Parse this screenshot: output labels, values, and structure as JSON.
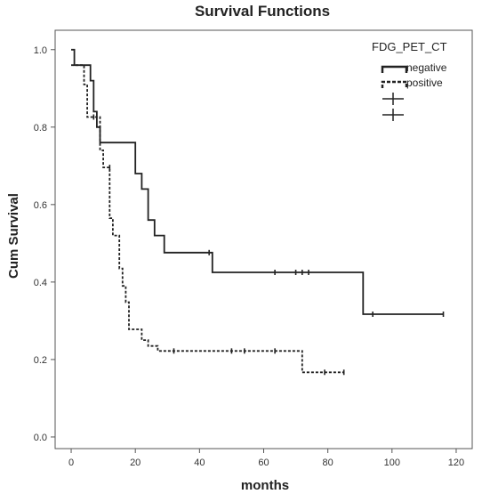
{
  "chart_data": {
    "type": "line",
    "title": "Survival Functions",
    "xlabel": "months",
    "ylabel": "Cum Survival",
    "xlim": [
      -5,
      125
    ],
    "ylim": [
      -0.03,
      1.05
    ],
    "x_ticks": [
      0,
      20,
      40,
      60,
      80,
      100,
      120
    ],
    "y_ticks": [
      0.0,
      0.2,
      0.4,
      0.6,
      0.8,
      1.0
    ],
    "x_tick_labels": [
      "0",
      "20",
      "40",
      "60",
      "80",
      "100",
      "120"
    ],
    "y_tick_labels": [
      "0.0",
      "0.2",
      "0.4",
      "0.6",
      "0.8",
      "1.0"
    ],
    "grid": false,
    "legend": {
      "title": "FDG_PET_CT",
      "position": "top-right",
      "labels": [
        "negative",
        "positive"
      ]
    },
    "series": [
      {
        "name": "negative",
        "style": "solid",
        "color": "#222222",
        "steps": [
          [
            0,
            1.0
          ],
          [
            1,
            0.96
          ],
          [
            6,
            0.92
          ],
          [
            7,
            0.84
          ],
          [
            8,
            0.8
          ],
          [
            9,
            0.76
          ],
          [
            20,
            0.68
          ],
          [
            22,
            0.64
          ],
          [
            24,
            0.56
          ],
          [
            26,
            0.52
          ],
          [
            29,
            0.476
          ],
          [
            44,
            0.425
          ],
          [
            91,
            0.317
          ],
          [
            116,
            0.317
          ]
        ],
        "censored": [
          [
            43,
            0.476
          ],
          [
            63.5,
            0.425
          ],
          [
            70,
            0.425
          ],
          [
            72,
            0.425
          ],
          [
            74,
            0.425
          ],
          [
            94,
            0.317
          ],
          [
            116,
            0.317
          ]
        ]
      },
      {
        "name": "positive",
        "style": "dashed",
        "color": "#222222",
        "steps": [
          [
            0,
            0.96
          ],
          [
            4,
            0.91
          ],
          [
            5,
            0.826
          ],
          [
            7,
            0.826
          ],
          [
            9,
            0.74
          ],
          [
            10,
            0.696
          ],
          [
            12,
            0.565
          ],
          [
            13,
            0.52
          ],
          [
            15,
            0.435
          ],
          [
            16,
            0.39
          ],
          [
            17,
            0.348
          ],
          [
            18,
            0.278
          ],
          [
            22,
            0.25
          ],
          [
            24,
            0.235
          ],
          [
            27,
            0.222
          ],
          [
            72,
            0.167
          ],
          [
            85,
            0.167
          ]
        ],
        "censored": [
          [
            7,
            0.826
          ],
          [
            12,
            0.696
          ],
          [
            32,
            0.222
          ],
          [
            50,
            0.222
          ],
          [
            54,
            0.222
          ],
          [
            63.5,
            0.222
          ],
          [
            79,
            0.167
          ],
          [
            85,
            0.167
          ]
        ]
      }
    ]
  }
}
